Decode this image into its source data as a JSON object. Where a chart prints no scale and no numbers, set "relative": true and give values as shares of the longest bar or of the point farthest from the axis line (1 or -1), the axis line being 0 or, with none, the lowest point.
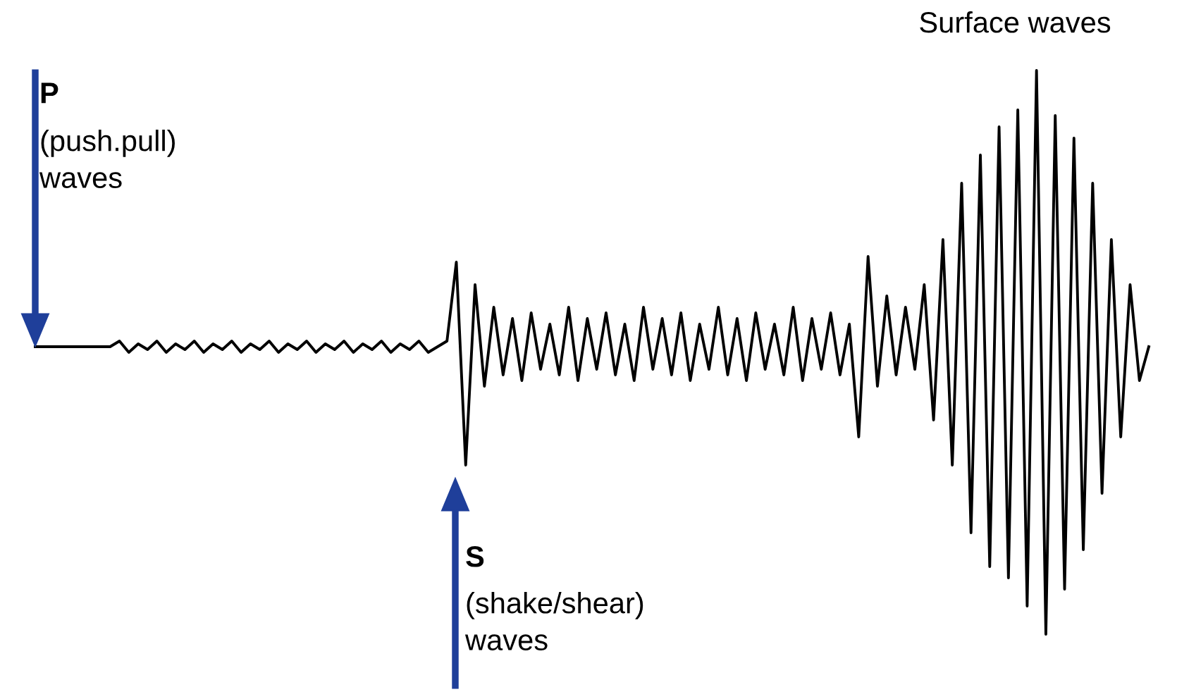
{
  "chart_data": {
    "type": "line",
    "relative": true,
    "legend": false,
    "marker": "none",
    "line_style": "solid",
    "categories": [
      null,
      null,
      null,
      null,
      null,
      null,
      null,
      null,
      null,
      null,
      null,
      null,
      null,
      null,
      null,
      null,
      null,
      null,
      null,
      null,
      null,
      null,
      null,
      null,
      null,
      null,
      null,
      null,
      null,
      null,
      null,
      null,
      null,
      null,
      null,
      null,
      null,
      null,
      null,
      null,
      null,
      null,
      null,
      null,
      null,
      null,
      null,
      null,
      null,
      null,
      null,
      null,
      null,
      null,
      null,
      null,
      null,
      null,
      null,
      null,
      null,
      null,
      null,
      null,
      null,
      null,
      null,
      null,
      null,
      null,
      null,
      null,
      null,
      null,
      null,
      null,
      null,
      null,
      null,
      null,
      null,
      null,
      null,
      null,
      null,
      null,
      null,
      null,
      null,
      null,
      null,
      null,
      null,
      null,
      null,
      null,
      null,
      null,
      null,
      null,
      null,
      null,
      null,
      null,
      null,
      null,
      null,
      null,
      null,
      null,
      null,
      null,
      null,
      null,
      null,
      null,
      null,
      null,
      null,
      null
    ],
    "series": [
      {
        "color": "#000000",
        "values": [
          0.51,
          0.51,
          0.51,
          0.51,
          0.51,
          0.51,
          0.51,
          0.51,
          0.51,
          0.52,
          0.5,
          0.515,
          0.505,
          0.52,
          0.5,
          0.515,
          0.505,
          0.52,
          0.5,
          0.515,
          0.505,
          0.52,
          0.5,
          0.515,
          0.505,
          0.52,
          0.5,
          0.515,
          0.505,
          0.52,
          0.5,
          0.515,
          0.505,
          0.52,
          0.5,
          0.515,
          0.505,
          0.52,
          0.5,
          0.515,
          0.505,
          0.52,
          0.5,
          0.51,
          0.52,
          0.66,
          0.3,
          0.62,
          0.44,
          0.58,
          0.46,
          0.56,
          0.45,
          0.57,
          0.47,
          0.55,
          0.46,
          0.58,
          0.45,
          0.56,
          0.47,
          0.57,
          0.46,
          0.55,
          0.45,
          0.58,
          0.47,
          0.56,
          0.46,
          0.57,
          0.45,
          0.55,
          0.47,
          0.58,
          0.46,
          0.56,
          0.45,
          0.57,
          0.47,
          0.55,
          0.46,
          0.58,
          0.45,
          0.56,
          0.47,
          0.57,
          0.46,
          0.55,
          0.35,
          0.67,
          0.44,
          0.6,
          0.46,
          0.58,
          0.47,
          0.62,
          0.38,
          0.7,
          0.3,
          0.8,
          0.18,
          0.85,
          0.12,
          0.9,
          0.1,
          0.93,
          0.05,
          1.0,
          0.0,
          0.92,
          0.08,
          0.88,
          0.15,
          0.8,
          0.25,
          0.7,
          0.35,
          0.62,
          0.45,
          0.51
        ]
      }
    ],
    "annotations": [
      "P",
      "(push.pull)\nwaves",
      "S",
      "(shake/shear)\nwaves",
      "Surface waves"
    ]
  }
}
